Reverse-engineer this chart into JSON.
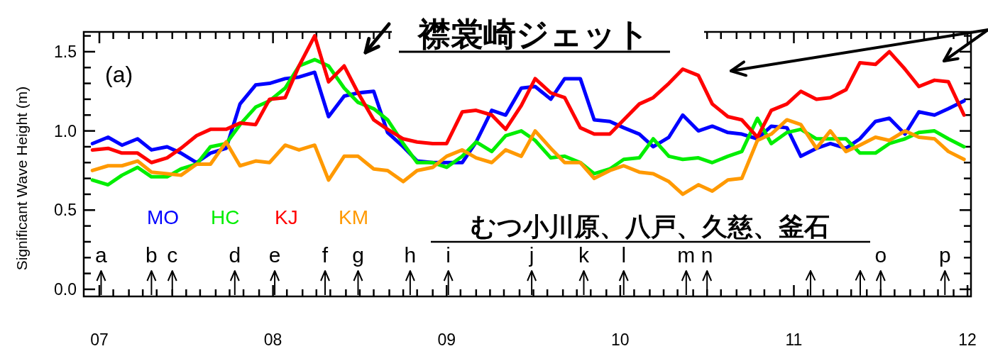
{
  "chart_data": {
    "type": "line",
    "title": "襟裳崎ジェット",
    "ylabel": "Significant Wave Height (m)",
    "x": [
      2006.96,
      2007.05,
      2007.13,
      2007.22,
      2007.3,
      2007.39,
      2007.47,
      2007.56,
      2007.64,
      2007.73,
      2007.81,
      2007.9,
      2007.98,
      2008.07,
      2008.15,
      2008.24,
      2008.32,
      2008.41,
      2008.49,
      2008.58,
      2008.66,
      2008.75,
      2008.83,
      2008.92,
      2009.0,
      2009.09,
      2009.17,
      2009.26,
      2009.34,
      2009.43,
      2009.51,
      2009.6,
      2009.68,
      2009.77,
      2009.85,
      2009.94,
      2010.02,
      2010.11,
      2010.19,
      2010.28,
      2010.36,
      2010.45,
      2010.53,
      2010.62,
      2010.7,
      2010.79,
      2010.87,
      2010.96,
      2011.04,
      2011.13,
      2011.21,
      2011.3,
      2011.38,
      2011.47,
      2011.55,
      2011.64,
      2011.72,
      2011.81,
      2011.89,
      2011.98
    ],
    "series": [
      {
        "name": "MO",
        "color": "#0000ff",
        "values": [
          0.92,
          0.96,
          0.91,
          0.95,
          0.88,
          0.9,
          0.86,
          0.8,
          0.86,
          0.89,
          1.17,
          1.29,
          1.3,
          1.33,
          1.34,
          1.37,
          1.09,
          1.22,
          1.24,
          1.25,
          0.99,
          0.9,
          0.81,
          0.8,
          0.8,
          0.8,
          0.93,
          1.13,
          1.1,
          1.27,
          1.28,
          1.2,
          1.33,
          1.33,
          1.07,
          1.06,
          1.02,
          0.98,
          0.9,
          0.96,
          1.1,
          1.0,
          1.03,
          0.99,
          0.98,
          0.95,
          1.03,
          1.02,
          0.84,
          0.89,
          0.92,
          0.89,
          0.95,
          1.06,
          1.08,
          0.98,
          1.12,
          1.1,
          1.14,
          1.19
        ]
      },
      {
        "name": "HC",
        "color": "#00ee00",
        "values": [
          0.69,
          0.66,
          0.72,
          0.77,
          0.71,
          0.71,
          0.76,
          0.79,
          0.9,
          0.92,
          1.04,
          1.15,
          1.19,
          1.27,
          1.41,
          1.45,
          1.41,
          1.27,
          1.18,
          1.14,
          1.07,
          0.92,
          0.8,
          0.8,
          0.77,
          0.84,
          0.93,
          0.87,
          0.97,
          1.0,
          0.94,
          0.83,
          0.84,
          0.8,
          0.73,
          0.76,
          0.82,
          0.83,
          0.95,
          0.84,
          0.82,
          0.83,
          0.8,
          0.84,
          0.87,
          1.08,
          0.92,
          0.99,
          1.01,
          0.95,
          0.95,
          0.95,
          0.86,
          0.86,
          0.92,
          0.95,
          0.99,
          1.0,
          0.95,
          0.9
        ]
      },
      {
        "name": "KJ",
        "color": "#ff0000",
        "values": [
          0.88,
          0.89,
          0.86,
          0.86,
          0.8,
          0.83,
          0.89,
          0.97,
          1.01,
          1.01,
          1.05,
          1.04,
          1.2,
          1.21,
          1.41,
          1.6,
          1.31,
          1.41,
          1.24,
          1.07,
          1.01,
          0.95,
          0.93,
          0.92,
          0.92,
          1.12,
          1.13,
          1.1,
          1.01,
          1.16,
          1.33,
          1.24,
          1.21,
          1.02,
          0.98,
          0.98,
          1.07,
          1.17,
          1.21,
          1.3,
          1.39,
          1.35,
          1.17,
          1.09,
          1.07,
          0.96,
          1.13,
          1.17,
          1.25,
          1.2,
          1.21,
          1.26,
          1.43,
          1.42,
          1.5,
          1.39,
          1.28,
          1.32,
          1.31,
          1.1
        ]
      },
      {
        "name": "KM",
        "color": "#ff9900",
        "values": [
          0.75,
          0.78,
          0.78,
          0.81,
          0.74,
          0.73,
          0.72,
          0.79,
          0.79,
          0.93,
          0.78,
          0.81,
          0.8,
          0.91,
          0.88,
          0.91,
          0.69,
          0.84,
          0.84,
          0.76,
          0.75,
          0.68,
          0.75,
          0.77,
          0.84,
          0.88,
          0.83,
          0.8,
          0.88,
          0.84,
          1.0,
          0.89,
          0.8,
          0.8,
          0.7,
          0.75,
          0.78,
          0.74,
          0.73,
          0.68,
          0.6,
          0.66,
          0.62,
          0.69,
          0.7,
          0.94,
          0.98,
          1.07,
          1.04,
          0.89,
          1.0,
          0.87,
          0.91,
          0.96,
          0.94,
          1.0,
          0.96,
          0.95,
          0.87,
          0.82
        ]
      }
    ],
    "xlim": [
      2006.91,
      2012.02
    ],
    "xticks": [
      {
        "value": 2007,
        "label": "07"
      },
      {
        "value": 2007.08,
        "label": null
      },
      {
        "value": 2007.17,
        "label": null
      },
      {
        "value": 2007.25,
        "label": null
      },
      {
        "value": 2007.33,
        "label": null
      },
      {
        "value": 2007.42,
        "label": null
      },
      {
        "value": 2007.5,
        "label": null
      },
      {
        "value": 2007.58,
        "label": null
      },
      {
        "value": 2007.67,
        "label": null
      },
      {
        "value": 2007.75,
        "label": null
      },
      {
        "value": 2007.83,
        "label": null
      },
      {
        "value": 2007.92,
        "label": null
      },
      {
        "value": 2008,
        "label": "08"
      },
      {
        "value": 2008.08,
        "label": null
      },
      {
        "value": 2008.17,
        "label": null
      },
      {
        "value": 2008.25,
        "label": null
      },
      {
        "value": 2008.33,
        "label": null
      },
      {
        "value": 2008.42,
        "label": null
      },
      {
        "value": 2008.5,
        "label": null
      },
      {
        "value": 2008.58,
        "label": null
      },
      {
        "value": 2008.67,
        "label": null
      },
      {
        "value": 2008.75,
        "label": null
      },
      {
        "value": 2008.83,
        "label": null
      },
      {
        "value": 2008.92,
        "label": null
      },
      {
        "value": 2009,
        "label": "09"
      },
      {
        "value": 2009.08,
        "label": null
      },
      {
        "value": 2009.17,
        "label": null
      },
      {
        "value": 2009.25,
        "label": null
      },
      {
        "value": 2009.33,
        "label": null
      },
      {
        "value": 2009.42,
        "label": null
      },
      {
        "value": 2009.5,
        "label": null
      },
      {
        "value": 2009.58,
        "label": null
      },
      {
        "value": 2009.67,
        "label": null
      },
      {
        "value": 2009.75,
        "label": null
      },
      {
        "value": 2009.83,
        "label": null
      },
      {
        "value": 2009.92,
        "label": null
      },
      {
        "value": 2010,
        "label": "10"
      },
      {
        "value": 2010.08,
        "label": null
      },
      {
        "value": 2010.17,
        "label": null
      },
      {
        "value": 2010.25,
        "label": null
      },
      {
        "value": 2010.33,
        "label": null
      },
      {
        "value": 2010.42,
        "label": null
      },
      {
        "value": 2010.5,
        "label": null
      },
      {
        "value": 2010.58,
        "label": null
      },
      {
        "value": 2010.67,
        "label": null
      },
      {
        "value": 2010.75,
        "label": null
      },
      {
        "value": 2010.83,
        "label": null
      },
      {
        "value": 2010.92,
        "label": null
      },
      {
        "value": 2011,
        "label": "11"
      },
      {
        "value": 2011.08,
        "label": null
      },
      {
        "value": 2011.17,
        "label": null
      },
      {
        "value": 2011.25,
        "label": null
      },
      {
        "value": 2011.33,
        "label": null
      },
      {
        "value": 2011.42,
        "label": null
      },
      {
        "value": 2011.5,
        "label": null
      },
      {
        "value": 2011.58,
        "label": null
      },
      {
        "value": 2011.67,
        "label": null
      },
      {
        "value": 2011.75,
        "label": null
      },
      {
        "value": 2011.83,
        "label": null
      },
      {
        "value": 2011.92,
        "label": null
      },
      {
        "value": 2012,
        "label": "12"
      }
    ],
    "ylim": [
      -0.045,
      1.625
    ],
    "yticks": [
      {
        "value": 0,
        "label": "0.0"
      },
      {
        "value": 0.1,
        "label": null
      },
      {
        "value": 0.2,
        "label": null
      },
      {
        "value": 0.3,
        "label": null
      },
      {
        "value": 0.4,
        "label": null
      },
      {
        "value": 0.5,
        "label": "0.5"
      },
      {
        "value": 0.6,
        "label": null
      },
      {
        "value": 0.7,
        "label": null
      },
      {
        "value": 0.8,
        "label": null
      },
      {
        "value": 0.9,
        "label": null
      },
      {
        "value": 1.0,
        "label": "1.0"
      },
      {
        "value": 1.1,
        "label": null
      },
      {
        "value": 1.2,
        "label": null
      },
      {
        "value": 1.3,
        "label": null
      },
      {
        "value": 1.4,
        "label": null
      },
      {
        "value": 1.5,
        "label": "1.5"
      },
      {
        "value": 1.6,
        "label": null
      }
    ],
    "legend": "bottom left",
    "annotations": [
      "(a)",
      "むつ小川原、八戸、久慈、釜石"
    ],
    "ref_lines": [
      {
        "axis": "x",
        "value": 2007.01,
        "label": "a"
      },
      {
        "axis": "x",
        "value": 2007.3,
        "label": "b"
      },
      {
        "axis": "x",
        "value": 2007.42,
        "label": "c"
      },
      {
        "axis": "x",
        "value": 2007.78,
        "label": "d"
      },
      {
        "axis": "x",
        "value": 2008.01,
        "label": "e"
      },
      {
        "axis": "x",
        "value": 2008.3,
        "label": "f"
      },
      {
        "axis": "x",
        "value": 2008.49,
        "label": "g"
      },
      {
        "axis": "x",
        "value": 2008.79,
        "label": "h"
      },
      {
        "axis": "x",
        "value": 2009.01,
        "label": "i"
      },
      {
        "axis": "x",
        "value": 2009.49,
        "label": "j"
      },
      {
        "axis": "x",
        "value": 2009.79,
        "label": "k"
      },
      {
        "axis": "x",
        "value": 2010.02,
        "label": "l"
      },
      {
        "axis": "x",
        "value": 2010.38,
        "label": "m"
      },
      {
        "axis": "x",
        "value": 2010.5,
        "label": "n"
      },
      {
        "axis": "x",
        "value": 2011.5,
        "label": "o"
      },
      {
        "axis": "x",
        "value": 2011.87,
        "label": "p"
      }
    ]
  }
}
